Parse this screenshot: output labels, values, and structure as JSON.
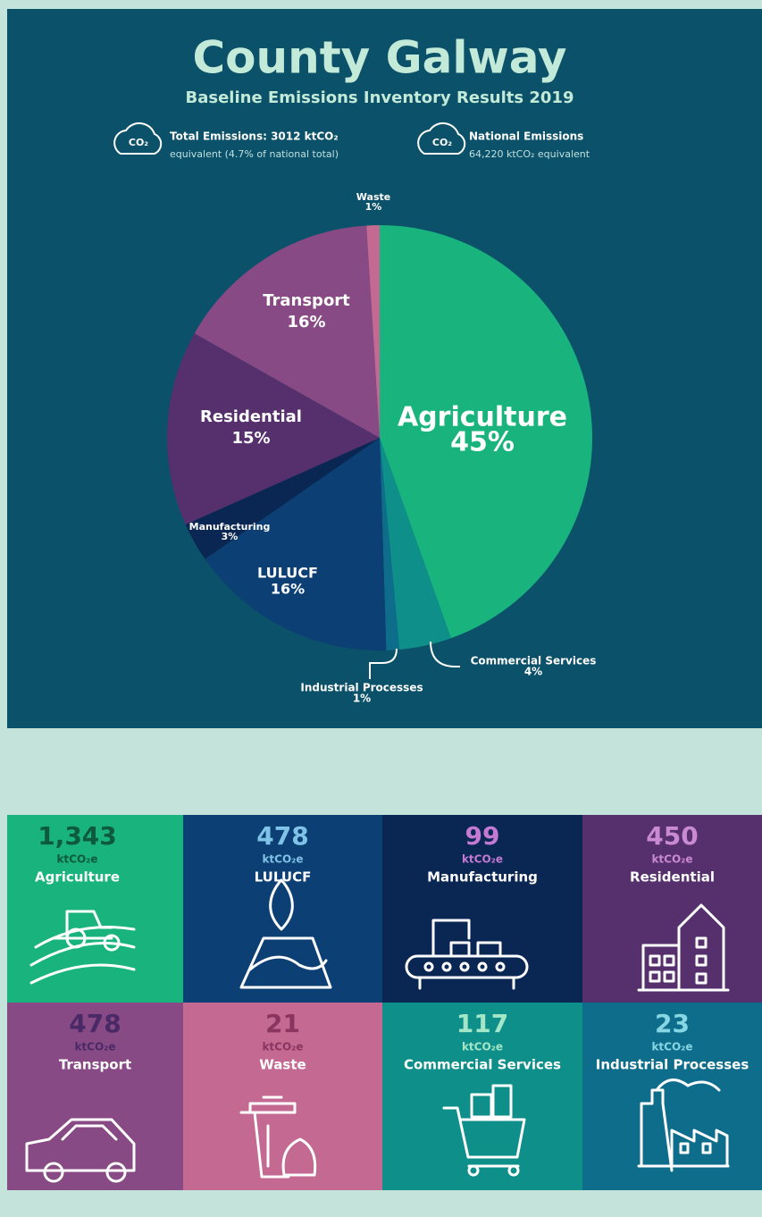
{
  "chart_data": {
    "type": "pie",
    "title": "County Galway",
    "subtitle": "Baseline Emissions Inventory Results 2019",
    "icon_label": "CO₂",
    "stats": [
      {
        "line1": "Total Emissions: 3012 ktCO₂",
        "line2": "equivalent (4.7% of national total)"
      },
      {
        "line1": "National Emissions",
        "line2": "64,220 ktCO₂ equivalent"
      }
    ],
    "categories": [
      "Agriculture",
      "Commercial Services",
      "Industrial Processes",
      "LULUCF",
      "Manufacturing",
      "Residential",
      "Transport",
      "Waste"
    ],
    "values": [
      45,
      4,
      1,
      16,
      3,
      15,
      16,
      1
    ],
    "value_labels": [
      "45%",
      "4%",
      "1%",
      "16%",
      "3%",
      "15%",
      "16%",
      "1%"
    ],
    "colors": [
      "#19b47e",
      "#0e8f8a",
      "#0f6d8c",
      "#0c3f74",
      "#0a2653",
      "#56306d",
      "#884a85",
      "#c46a92"
    ]
  },
  "tiles": [
    {
      "value": "1,343",
      "unit": "ktCO₂e",
      "name": "Agriculture",
      "bg": "#19b47e",
      "accent": "#0e5a3e"
    },
    {
      "value": "478",
      "unit": "ktCO₂e",
      "name": "LULUCF",
      "bg": "#0c3f74",
      "accent": "#7fc3e8"
    },
    {
      "value": "99",
      "unit": "ktCO₂e",
      "name": "Manufacturing",
      "bg": "#0a2653",
      "accent": "#c47ad3"
    },
    {
      "value": "450",
      "unit": "ktCO₂e",
      "name": "Residential",
      "bg": "#56306d",
      "accent": "#c98ad3"
    },
    {
      "value": "478",
      "unit": "ktCO₂e",
      "name": "Transport",
      "bg": "#884a85",
      "accent": "#4a2a66"
    },
    {
      "value": "21",
      "unit": "ktCO₂e",
      "name": "Waste",
      "bg": "#c46a92",
      "accent": "#8a3560"
    },
    {
      "value": "117",
      "unit": "ktCO₂e",
      "name": "Commercial Services",
      "bg": "#0e8f8a",
      "accent": "#a3e6c8"
    },
    {
      "value": "23",
      "unit": "ktCO₂e",
      "name": "Industrial Processes",
      "bg": "#0f6d8c",
      "accent": "#86d6e3"
    }
  ]
}
